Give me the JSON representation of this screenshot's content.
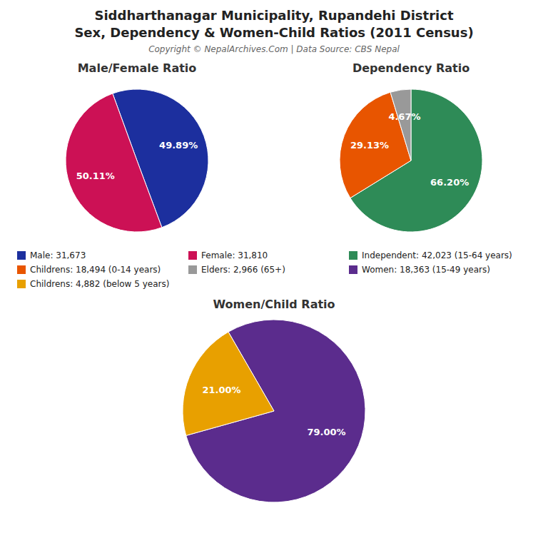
{
  "title": [
    "Siddharthanagar Municipality, Rupandehi District",
    "Sex, Dependency & Women-Child Ratios (2011 Census)"
  ],
  "subtitle": "Copyright © NepalArchives.Com | Data Source: CBS Nepal",
  "chart_data": [
    {
      "type": "pie",
      "title": "Male/Female Ratio",
      "categories": [
        "Male: 31,673",
        "Female: 31,810"
      ],
      "values": [
        49.89,
        50.11
      ],
      "value_labels": [
        "49.89%",
        "50.11%"
      ],
      "colors": [
        "#1C2F9E",
        "#CC1155"
      ],
      "data_labels": true,
      "legend": "center"
    },
    {
      "type": "pie",
      "title": "Dependency Ratio",
      "categories": [
        "Independent: 42,023 (15-64 years)",
        "Childrens: 18,494 (0-14 years)",
        "Elders: 2,966 (65+)"
      ],
      "values": [
        66.2,
        29.13,
        4.67
      ],
      "value_labels": [
        "66.20%",
        "29.13%",
        "4.67%"
      ],
      "colors": [
        "#2E8B57",
        "#E85500",
        "#999999"
      ],
      "data_labels": true,
      "legend": "center"
    },
    {
      "type": "pie",
      "title": "Women/Child Ratio",
      "categories": [
        "Women: 18,363 (15-49 years)",
        "Childrens: 4,882 (below 5 years)"
      ],
      "values": [
        79.0,
        21.0
      ],
      "value_labels": [
        "79.00%",
        "21.00%"
      ],
      "colors": [
        "#5B2C8D",
        "#E8A000"
      ],
      "data_labels": true,
      "legend": "center"
    }
  ]
}
